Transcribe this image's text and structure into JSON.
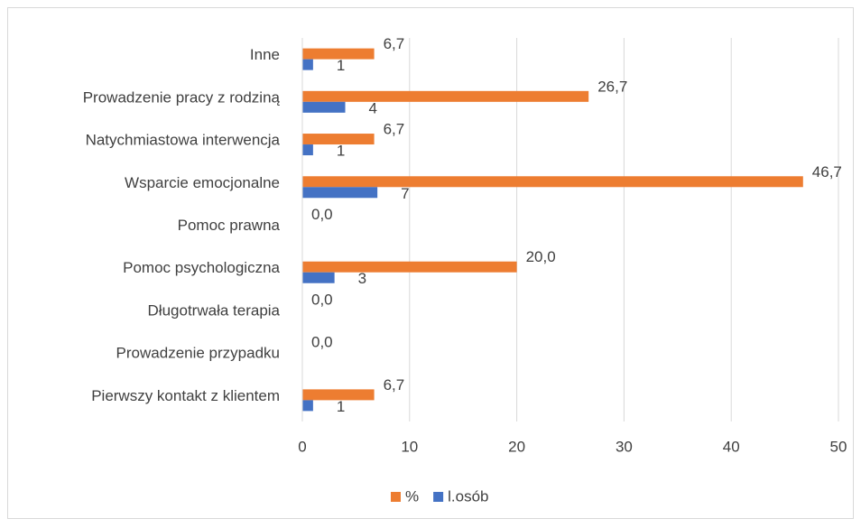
{
  "chart_data": {
    "type": "hbar",
    "categories": [
      "Inne",
      "Prowadzenie pracy z rodziną",
      "Natychmiastowa interwencja",
      "Wsparcie emocjonalne",
      "Pomoc prawna",
      "Pomoc psychologiczna",
      "Długotrwała terapia",
      "Prowadzenie przypadku",
      "Pierwszy kontakt z klientem"
    ],
    "series": [
      {
        "name": "%",
        "color": "#ed7d31",
        "values": [
          6.7,
          26.7,
          6.7,
          46.7,
          0,
          20,
          0,
          0,
          6.7
        ],
        "value_labels": [
          "6,7",
          "26,7",
          "6,7",
          "46,7",
          "0,0",
          "20,0",
          "0,0",
          "0,0",
          "6,7"
        ]
      },
      {
        "name": "l.osób",
        "color": "#4472c4",
        "values": [
          1,
          4,
          1,
          7,
          0,
          3,
          0,
          0,
          1
        ],
        "value_labels": [
          "1",
          "4",
          "1",
          "7",
          null,
          "3",
          null,
          null,
          "1"
        ]
      }
    ],
    "xlim": [
      0,
      50
    ],
    "xticks": [
      0,
      10,
      20,
      30,
      40,
      50
    ],
    "grid": true,
    "legend": "bottom"
  }
}
